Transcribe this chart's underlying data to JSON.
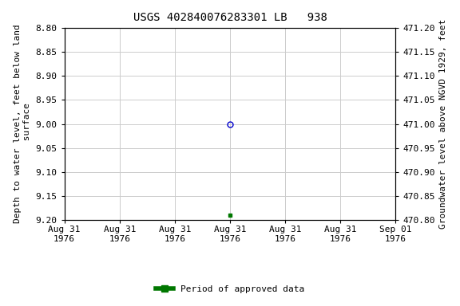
{
  "title": "USGS 402840076283301 LB   938",
  "left_ylabel": "Depth to water level, feet below land\n surface",
  "right_ylabel": "Groundwater level above NGVD 1929, feet",
  "ylim_left": [
    8.8,
    9.2
  ],
  "ylim_right": [
    470.8,
    471.2
  ],
  "yticks_left": [
    8.8,
    8.85,
    8.9,
    8.95,
    9.0,
    9.05,
    9.1,
    9.15,
    9.2
  ],
  "yticks_right": [
    470.8,
    470.85,
    470.9,
    470.95,
    471.0,
    471.05,
    471.1,
    471.15,
    471.2
  ],
  "data_unapproved": {
    "x": 3.0,
    "depth": 9.0,
    "color": "#0000cc",
    "marker": "o",
    "markersize": 5,
    "fillstyle": "none"
  },
  "data_approved": {
    "x": 3.0,
    "depth": 9.19,
    "color": "#007700",
    "marker": "s",
    "markersize": 3,
    "fillstyle": "full"
  },
  "xlim": [
    0,
    6
  ],
  "n_ticks": 7,
  "xtick_positions": [
    0,
    1,
    2,
    3,
    4,
    5,
    6
  ],
  "xtick_labels": [
    "Aug 31\n1976",
    "Aug 31\n1976",
    "Aug 31\n1976",
    "Aug 31\n1976",
    "Aug 31\n1976",
    "Aug 31\n1976",
    "Sep 01\n1976"
  ],
  "grid_color": "#cccccc",
  "background_color": "#ffffff",
  "legend_label": "Period of approved data",
  "legend_color": "#007700",
  "font_family": "monospace",
  "title_fontsize": 10,
  "label_fontsize": 8,
  "tick_fontsize": 8
}
